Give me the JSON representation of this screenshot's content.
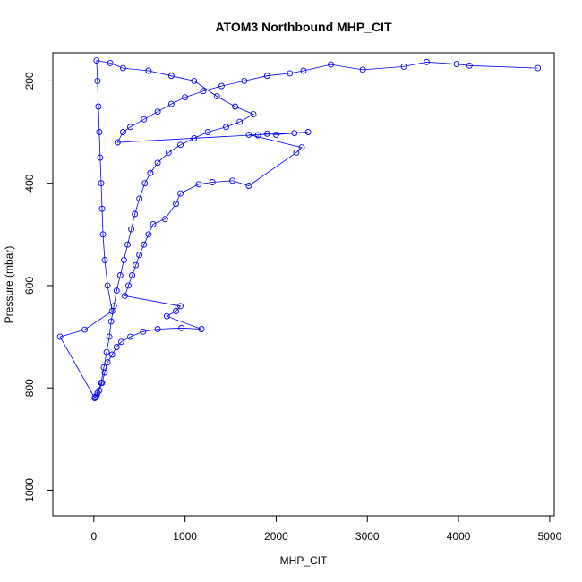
{
  "chart_data": {
    "type": "scatter",
    "title": "ATOM3 Northbound MHP_CIT",
    "xlabel": "MHP_CIT",
    "ylabel": "Pressure (mbar)",
    "xlim": [
      -450,
      5050
    ],
    "ylim": [
      1050,
      145
    ],
    "y_reversed": true,
    "x_ticks": [
      0,
      1000,
      2000,
      3000,
      4000,
      5000
    ],
    "x_tick_labels": [
      "0",
      "1000",
      "2000",
      "3000",
      "4000",
      "5000"
    ],
    "y_ticks": [
      200,
      400,
      600,
      800,
      1000
    ],
    "y_tick_labels": [
      "200",
      "400",
      "600",
      "800",
      "1000"
    ],
    "grid": false,
    "legend": "none",
    "series_color": "#0000ff",
    "marker": "open-circle",
    "connect_points": true,
    "series": [
      {
        "points": [
          [
            4870,
            175
          ],
          [
            4120,
            170
          ],
          [
            3980,
            167
          ],
          [
            3650,
            163
          ],
          [
            3400,
            172
          ],
          [
            2950,
            178
          ],
          [
            2600,
            168
          ],
          [
            2300,
            180
          ],
          [
            2150,
            185
          ],
          [
            1900,
            190
          ],
          [
            1650,
            200
          ],
          [
            1400,
            210
          ],
          [
            1200,
            220
          ],
          [
            1000,
            232
          ],
          [
            850,
            245
          ],
          [
            700,
            260
          ],
          [
            550,
            275
          ],
          [
            400,
            290
          ],
          [
            320,
            300
          ],
          [
            260,
            320
          ],
          [
            2350,
            300
          ],
          [
            2200,
            302
          ],
          [
            2000,
            305
          ],
          [
            1900,
            303
          ],
          [
            1800,
            306
          ],
          [
            1700,
            305
          ],
          [
            2280,
            330
          ],
          [
            2220,
            340
          ],
          [
            1700,
            405
          ],
          [
            1520,
            395
          ],
          [
            1300,
            398
          ],
          [
            1150,
            402
          ],
          [
            950,
            420
          ],
          [
            900,
            440
          ],
          [
            780,
            470
          ],
          [
            650,
            480
          ],
          [
            600,
            500
          ],
          [
            550,
            520
          ],
          [
            500,
            540
          ],
          [
            460,
            560
          ],
          [
            420,
            580
          ],
          [
            380,
            600
          ],
          [
            340,
            620
          ],
          [
            950,
            640
          ],
          [
            900,
            650
          ],
          [
            800,
            660
          ],
          [
            1180,
            685
          ],
          [
            960,
            683
          ],
          [
            700,
            685
          ],
          [
            540,
            690
          ],
          [
            400,
            700
          ],
          [
            300,
            710
          ],
          [
            250,
            720
          ],
          [
            200,
            735
          ],
          [
            150,
            750
          ],
          [
            120,
            770
          ],
          [
            90,
            790
          ],
          [
            60,
            805
          ],
          [
            30,
            815
          ],
          [
            10,
            820
          ],
          [
            -370,
            700
          ],
          [
            -100,
            686
          ],
          [
            200,
            650
          ],
          [
            150,
            600
          ],
          [
            120,
            550
          ],
          [
            100,
            500
          ],
          [
            90,
            450
          ],
          [
            80,
            400
          ],
          [
            70,
            350
          ],
          [
            60,
            300
          ],
          [
            50,
            250
          ],
          [
            40,
            200
          ],
          [
            30,
            160
          ],
          [
            180,
            165
          ],
          [
            320,
            175
          ],
          [
            600,
            180
          ],
          [
            850,
            190
          ],
          [
            1100,
            200
          ],
          [
            1350,
            230
          ],
          [
            1550,
            250
          ],
          [
            1750,
            265
          ],
          [
            1600,
            280
          ],
          [
            1450,
            290
          ],
          [
            1250,
            300
          ],
          [
            1100,
            312
          ],
          [
            950,
            325
          ],
          [
            820,
            340
          ],
          [
            700,
            360
          ],
          [
            620,
            380
          ],
          [
            560,
            400
          ],
          [
            500,
            430
          ],
          [
            450,
            460
          ],
          [
            410,
            490
          ],
          [
            370,
            520
          ],
          [
            330,
            550
          ],
          [
            290,
            580
          ],
          [
            250,
            610
          ],
          [
            220,
            640
          ],
          [
            190,
            670
          ],
          [
            170,
            700
          ],
          [
            140,
            730
          ],
          [
            110,
            760
          ],
          [
            80,
            790
          ],
          [
            40,
            810
          ],
          [
            15,
            818
          ]
        ]
      }
    ]
  }
}
